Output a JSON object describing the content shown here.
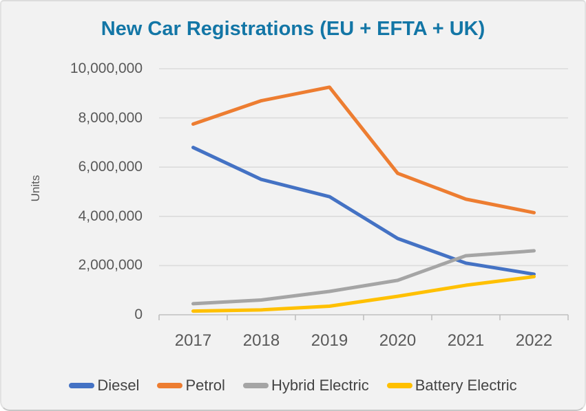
{
  "card": {
    "background_color": "#f2f2f2",
    "border_color": "#c7c7c7"
  },
  "chart_data": {
    "type": "line",
    "title": "New Car Registrations (EU + EFTA + UK)",
    "title_color": "#1376a6",
    "xlabel": "",
    "ylabel": "Units",
    "categories": [
      "2017",
      "2018",
      "2019",
      "2020",
      "2021",
      "2022"
    ],
    "series": [
      {
        "name": "Diesel",
        "color": "#4472C4",
        "values": [
          6800000,
          5500000,
          4800000,
          3100000,
          2100000,
          1650000
        ]
      },
      {
        "name": "Petrol",
        "color": "#ED7D31",
        "values": [
          7750000,
          8700000,
          9250000,
          5750000,
          4700000,
          4150000
        ]
      },
      {
        "name": "Hybrid Electric",
        "color": "#A5A5A5",
        "values": [
          450000,
          600000,
          950000,
          1400000,
          2400000,
          2600000
        ]
      },
      {
        "name": "Battery Electric",
        "color": "#FFC000",
        "values": [
          150000,
          200000,
          350000,
          750000,
          1200000,
          1550000
        ]
      }
    ],
    "ylim": [
      0,
      10000000
    ],
    "y_ticks": [
      0,
      2000000,
      4000000,
      6000000,
      8000000,
      10000000
    ],
    "y_tick_labels": [
      "0",
      "2,000,000",
      "4,000,000",
      "6,000,000",
      "8,000,000",
      "10,000,000"
    ],
    "grid": true,
    "gridline_color": "#dbdbdb",
    "axis_color": "#bfbfbf",
    "tick_text_color": "#595959",
    "legend_position": "bottom"
  }
}
